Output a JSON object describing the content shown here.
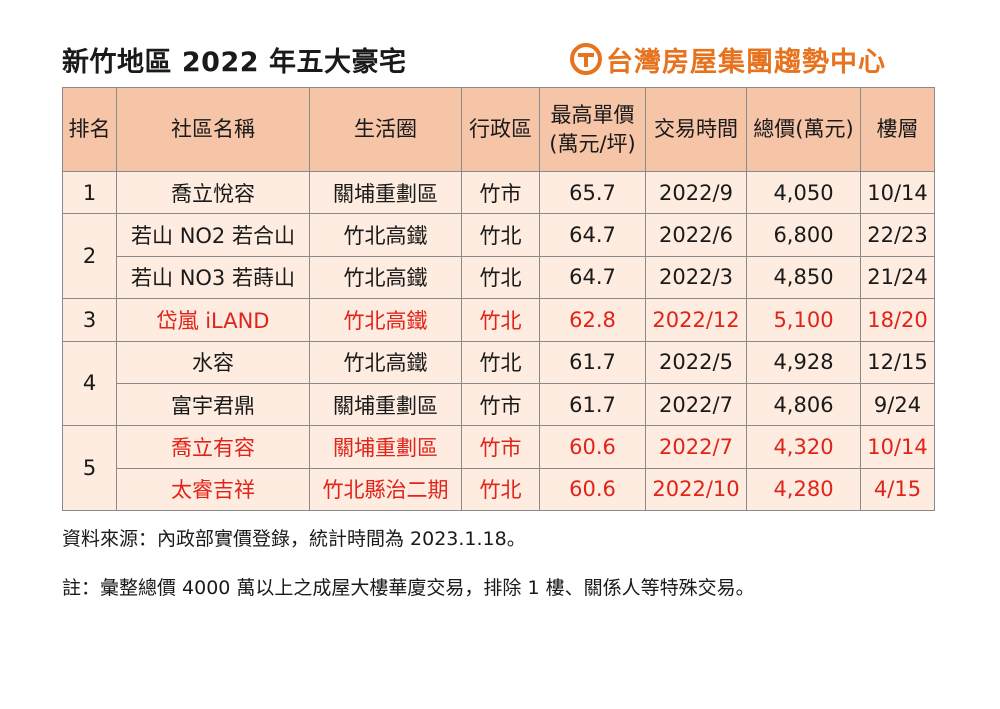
{
  "title": "新竹地區 2022 年五大豪宅",
  "brand": {
    "name": "台灣房屋集團趨勢中心",
    "color": "#e8731f"
  },
  "colors": {
    "header_bg": "#f6c4a6",
    "cell_bg": "#fdecdf",
    "highlight_text": "#e0241b",
    "border": "#8a8a8a"
  },
  "table": {
    "headers": {
      "rank": "排名",
      "name": "社區名稱",
      "area": "生活圈",
      "district": "行政區",
      "price_line1": "最高單價",
      "price_line2": "(萬元/坪)",
      "date": "交易時間",
      "total": "總價(萬元)",
      "floor": "樓層"
    },
    "rows": [
      {
        "rank": "1",
        "name": "喬立悅容",
        "area": "關埔重劃區",
        "district": "竹市",
        "price": "65.7",
        "date": "2022/9",
        "total": "4,050",
        "floor": "10/14",
        "highlight": false
      },
      {
        "rank": "2",
        "name": "若山 NO2 若合山",
        "area": "竹北高鐵",
        "district": "竹北",
        "price": "64.7",
        "date": "2022/6",
        "total": "6,800",
        "floor": "22/23",
        "highlight": false
      },
      {
        "rank": "",
        "name": "若山 NO3 若蒔山",
        "area": "竹北高鐵",
        "district": "竹北",
        "price": "64.7",
        "date": "2022/3",
        "total": "4,850",
        "floor": "21/24",
        "highlight": false
      },
      {
        "rank": "3",
        "name": "岱嵐 iLAND",
        "area": "竹北高鐵",
        "district": "竹北",
        "price": "62.8",
        "date": "2022/12",
        "total": "5,100",
        "floor": "18/20",
        "highlight": true
      },
      {
        "rank": "4",
        "name": "水容",
        "area": "竹北高鐵",
        "district": "竹北",
        "price": "61.7",
        "date": "2022/5",
        "total": "4,928",
        "floor": "12/15",
        "highlight": false
      },
      {
        "rank": "",
        "name": "富宇君鼎",
        "area": "關埔重劃區",
        "district": "竹市",
        "price": "61.7",
        "date": "2022/7",
        "total": "4,806",
        "floor": "9/24",
        "highlight": false
      },
      {
        "rank": "5",
        "name": "喬立有容",
        "area": "關埔重劃區",
        "district": "竹市",
        "price": "60.6",
        "date": "2022/7",
        "total": "4,320",
        "floor": "10/14",
        "highlight": true
      },
      {
        "rank": "",
        "name": "太睿吉祥",
        "area": "竹北縣治二期",
        "district": "竹北",
        "price": "60.6",
        "date": "2022/10",
        "total": "4,280",
        "floor": "4/15",
        "highlight": true
      }
    ]
  },
  "notes": {
    "source": "資料來源：內政部實價登錄，統計時間為 2023.1.18。",
    "remark": "註：彙整總價 4000 萬以上之成屋大樓華廈交易，排除 1 樓、關係人等特殊交易。"
  }
}
